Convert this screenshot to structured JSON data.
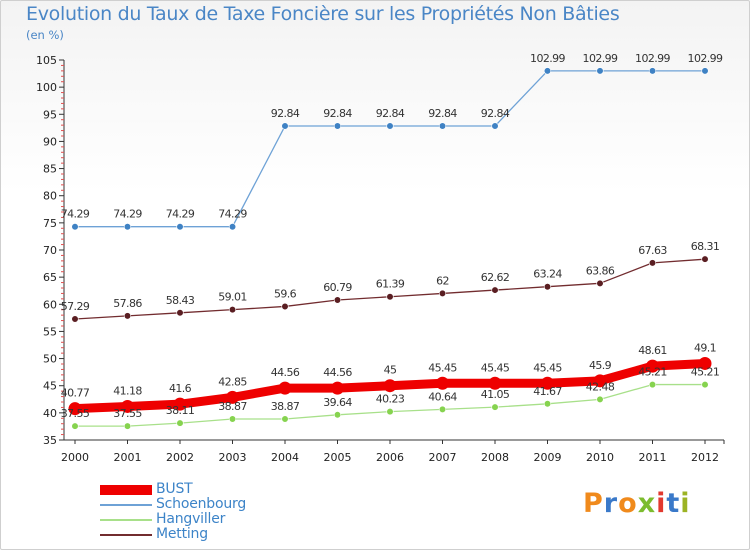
{
  "chart_data": {
    "type": "line",
    "title": "Evolution du Taux de Taxe Foncière sur les Propriétés Non Bâties",
    "unit_label": "(en %)",
    "x": [
      "2000",
      "2001",
      "2002",
      "2003",
      "2004",
      "2005",
      "2006",
      "2007",
      "2008",
      "2009",
      "2010",
      "2011",
      "2012"
    ],
    "ylim": [
      35,
      105
    ],
    "yticks": [
      35,
      40,
      45,
      50,
      55,
      60,
      65,
      70,
      75,
      80,
      85,
      90,
      95,
      100,
      105
    ],
    "grid": false,
    "legend_position": "bottom-left",
    "series": [
      {
        "name": "Metting",
        "color": "#722c2f",
        "marker_color": "#5a1e22",
        "values": [
          57.29,
          57.86,
          58.43,
          59.01,
          59.6,
          60.79,
          61.39,
          62,
          62.62,
          63.24,
          63.86,
          67.63,
          68.31
        ],
        "labels": [
          "57.29",
          "57.86",
          "58.43",
          "59.01",
          "59.6",
          "60.79",
          "61.39",
          "62",
          "62.62",
          "63.24",
          "63.86",
          "67.63",
          "68.31"
        ]
      },
      {
        "name": "Hangviller",
        "color": "#a8e08a",
        "marker_color": "#86d34f",
        "values": [
          37.55,
          37.55,
          38.11,
          38.87,
          38.87,
          39.64,
          40.23,
          40.64,
          41.05,
          41.67,
          42.48,
          45.21,
          45.21
        ],
        "labels": [
          "37.55",
          "37.55",
          "38.11",
          "38.87",
          "38.87",
          "39.64",
          "40.23",
          "40.64",
          "41.05",
          "41.67",
          "42.48",
          "45.21",
          "45.21"
        ]
      },
      {
        "name": "Schoenbourg",
        "color": "#6ea2d6",
        "marker_color": "#3f82c4",
        "values": [
          74.29,
          74.29,
          74.29,
          74.29,
          92.84,
          92.84,
          92.84,
          92.84,
          92.84,
          102.99,
          102.99,
          102.99,
          102.99
        ],
        "labels": [
          "74.29",
          "74.29",
          "74.29",
          "74.29",
          "92.84",
          "92.84",
          "92.84",
          "92.84",
          "92.84",
          "102.99",
          "102.99",
          "102.99",
          "102.99"
        ]
      },
      {
        "name": "BUST",
        "color": "#ee0000",
        "marker_color": "#ee0000",
        "values": [
          40.77,
          41.18,
          41.6,
          42.85,
          44.56,
          44.56,
          45,
          45.45,
          45.45,
          45.45,
          45.9,
          48.61,
          49.1
        ],
        "labels": [
          "40.77",
          "41.18",
          "41.6",
          "42.85",
          "44.56",
          "44.56",
          "45",
          "45.45",
          "45.45",
          "45.45",
          "45.9",
          "48.61",
          "49.1"
        ]
      }
    ],
    "legend": [
      "BUST",
      "Schoenbourg",
      "Hangviller",
      "Metting"
    ]
  },
  "legend_styles": {
    "BUST": {
      "color": "#ee0000",
      "thickness": "thick"
    },
    "Schoenbourg": {
      "color": "#6ea2d6",
      "thickness": "thin"
    },
    "Hangviller": {
      "color": "#a8e08a",
      "thickness": "thin"
    },
    "Metting": {
      "color": "#722c2f",
      "thickness": "thin"
    }
  },
  "logo": {
    "text": "Proxiti"
  }
}
